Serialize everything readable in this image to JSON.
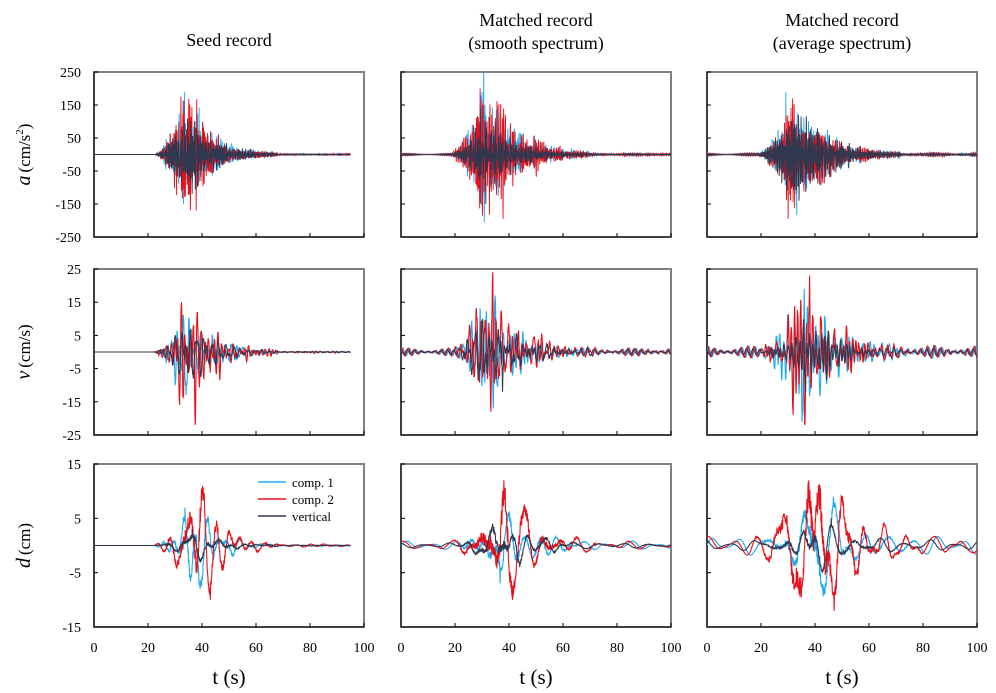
{
  "colors": {
    "comp1": "#1eaaf0",
    "comp2": "#e8101a",
    "vertical": "#303850",
    "frame": "#808080"
  },
  "column_titles": [
    {
      "lines": [
        "Seed record"
      ]
    },
    {
      "lines": [
        "Matched record",
        "(smooth spectrum)"
      ]
    },
    {
      "lines": [
        "Matched record",
        "(average spectrum)"
      ]
    }
  ],
  "xlabel": "t (s)",
  "legend": [
    "comp. 1",
    "comp. 2",
    "vertical"
  ],
  "chart_data": [
    {
      "type": "line",
      "row": "acceleration",
      "ylabel_var": "a",
      "ylabel_unit": "(cm/s",
      "ylabel_sup": "2",
      "ylabel_close": ")",
      "ylim": [
        -250,
        250
      ],
      "yticks": [
        "250",
        "150",
        "50",
        "-50",
        "-150",
        "-250"
      ],
      "xlim": [
        0,
        100
      ],
      "xticks": [
        "0",
        "20",
        "40",
        "60",
        "80",
        "100"
      ],
      "grid": false,
      "panels": [
        {
          "column": "Seed record",
          "duration": 95,
          "onset": 22,
          "peak_time": 34,
          "decay_end": 68,
          "peak": {
            "comp. 1": 190,
            "comp. 2": 175,
            "vertical": 110
          },
          "min": {
            "comp. 1": -150,
            "comp. 2": -170,
            "vertical": -120
          },
          "pre_event_noise": 0
        },
        {
          "column": "Matched record (smooth spectrum)",
          "duration": 100,
          "onset": 18,
          "peak_time": 31,
          "decay_end": 70,
          "peak": {
            "comp. 1": 250,
            "comp. 2": 200,
            "vertical": 140
          },
          "min": {
            "comp. 1": -205,
            "comp. 2": -195,
            "vertical": -150
          },
          "pre_event_noise": 4
        },
        {
          "column": "Matched record (average spectrum)",
          "duration": 100,
          "onset": 18,
          "peak_time": 33,
          "decay_end": 72,
          "peak": {
            "comp. 1": 190,
            "comp. 2": 170,
            "vertical": 120
          },
          "min": {
            "comp. 1": -180,
            "comp. 2": -195,
            "vertical": -140
          },
          "pre_event_noise": 5
        }
      ]
    },
    {
      "type": "line",
      "row": "velocity",
      "ylabel_var": "v",
      "ylabel_unit": "(cm/s)",
      "ylim": [
        -25,
        25
      ],
      "yticks": [
        "25",
        "15",
        "5",
        "-5",
        "-15",
        "-25"
      ],
      "xlim": [
        0,
        100
      ],
      "xticks": [
        "0",
        "20",
        "40",
        "60",
        "80",
        "100"
      ],
      "grid": false,
      "panels": [
        {
          "column": "Seed record",
          "duration": 95,
          "onset": 22,
          "peak_time": 34,
          "decay_end": 68,
          "peak": {
            "comp. 1": 11,
            "comp. 2": 15,
            "vertical": 7
          },
          "min": {
            "comp. 1": -13,
            "comp. 2": -22,
            "vertical": -8
          },
          "pre_event_noise": 0
        },
        {
          "column": "Matched record (smooth spectrum)",
          "duration": 100,
          "onset": 18,
          "peak_time": 32,
          "decay_end": 72,
          "peak": {
            "comp. 1": 17,
            "comp. 2": 24,
            "vertical": 10
          },
          "min": {
            "comp. 1": -17,
            "comp. 2": -18,
            "vertical": -12
          },
          "pre_event_noise": 1.2
        },
        {
          "column": "Matched record (average spectrum)",
          "duration": 100,
          "onset": 18,
          "peak_time": 36,
          "decay_end": 75,
          "peak": {
            "comp. 1": 19,
            "comp. 2": 23,
            "vertical": 10
          },
          "min": {
            "comp. 1": -21,
            "comp. 2": -22,
            "vertical": -12
          },
          "pre_event_noise": 1.8
        }
      ]
    },
    {
      "type": "line",
      "row": "displacement",
      "ylabel_var": "d",
      "ylabel_unit": "(cm)",
      "ylim": [
        -15,
        15
      ],
      "yticks": [
        "15",
        "5",
        "-5",
        "-15"
      ],
      "xlim": [
        0,
        100
      ],
      "xticks": [
        "0",
        "20",
        "40",
        "60",
        "80",
        "100"
      ],
      "grid": false,
      "panels": [
        {
          "column": "Seed record",
          "duration": 95,
          "onset": 22,
          "peak_time": 38,
          "decay_end": 68,
          "peak": {
            "comp. 1": 7,
            "comp. 2": 11,
            "vertical": 3
          },
          "min": {
            "comp. 1": -8,
            "comp. 2": -10,
            "vertical": -3
          },
          "pre_event_noise": 0
        },
        {
          "column": "Matched record (smooth spectrum)",
          "duration": 100,
          "onset": 18,
          "peak_time": 38,
          "decay_end": 72,
          "peak": {
            "comp. 1": 6,
            "comp. 2": 12,
            "vertical": 4
          },
          "min": {
            "comp. 1": -7,
            "comp. 2": -10,
            "vertical": -4
          },
          "pre_event_noise": 0.8
        },
        {
          "column": "Matched record (average spectrum)",
          "duration": 100,
          "onset": 15,
          "peak_time": 40,
          "decay_end": 80,
          "peak": {
            "comp. 1": 9,
            "comp. 2": 12,
            "vertical": 5
          },
          "min": {
            "comp. 1": -9,
            "comp. 2": -12,
            "vertical": -5
          },
          "pre_event_noise": 1.8
        }
      ]
    }
  ]
}
